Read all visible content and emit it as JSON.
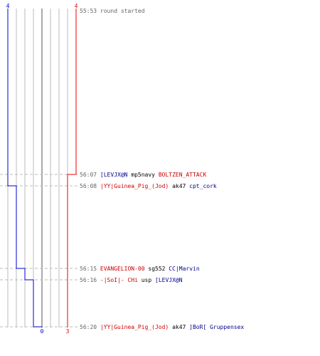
{
  "colors": {
    "blue_team": "#0000cc",
    "red_team": "#ee0000",
    "blue_player": "#00008b",
    "red_player": "#cc0000",
    "grid": "#bbbbbb",
    "axis": "#555555",
    "dash": "#bbbbbb",
    "time_text": "#666666"
  },
  "score_top": {
    "blue": "4",
    "red": "4"
  },
  "score_bottom": {
    "blue": "0",
    "red": "3"
  },
  "chart_data": {
    "type": "line",
    "series": [
      {
        "team": "blue",
        "points": [
          {
            "time": "55:53",
            "alive": 4
          },
          {
            "time": "56:08",
            "alive": 3
          },
          {
            "time": "56:15",
            "alive": 2
          },
          {
            "time": "56:16",
            "alive": 1
          },
          {
            "time": "56:20",
            "alive": 0
          }
        ]
      },
      {
        "team": "red",
        "points": [
          {
            "time": "55:53",
            "alive": 4
          },
          {
            "time": "56:07",
            "alive": 3
          }
        ]
      }
    ]
  },
  "start_event": {
    "time": "55:53",
    "text": "round started"
  },
  "kills": [
    {
      "time": "56:07",
      "killer": "[LEVJX@N",
      "killer_team": "blue",
      "weapon": "mp5navy",
      "victim": "BOLTZEN_ATTACK",
      "victim_team": "red"
    },
    {
      "time": "56:08",
      "killer": "|YY|Guinea_Pig_(Jod)",
      "killer_team": "red",
      "weapon": "ak47",
      "victim": "cpt_cork",
      "victim_team": "blue"
    },
    {
      "time": "56:15",
      "killer": "EVANGELION-00",
      "killer_team": "red",
      "weapon": "sg552",
      "victim": "CC|Marvin",
      "victim_team": "blue"
    },
    {
      "time": "56:16",
      "killer": "-|SoI|- CHi",
      "killer_team": "red",
      "weapon": "usp",
      "victim": "[LEVJX@N",
      "victim_team": "blue"
    },
    {
      "time": "56:20",
      "killer": "|YY|Guinea_Pig_(Jod)",
      "killer_team": "red",
      "weapon": "ak47",
      "victim": "]BoR[ Gruppensex",
      "victim_team": "blue"
    }
  ]
}
